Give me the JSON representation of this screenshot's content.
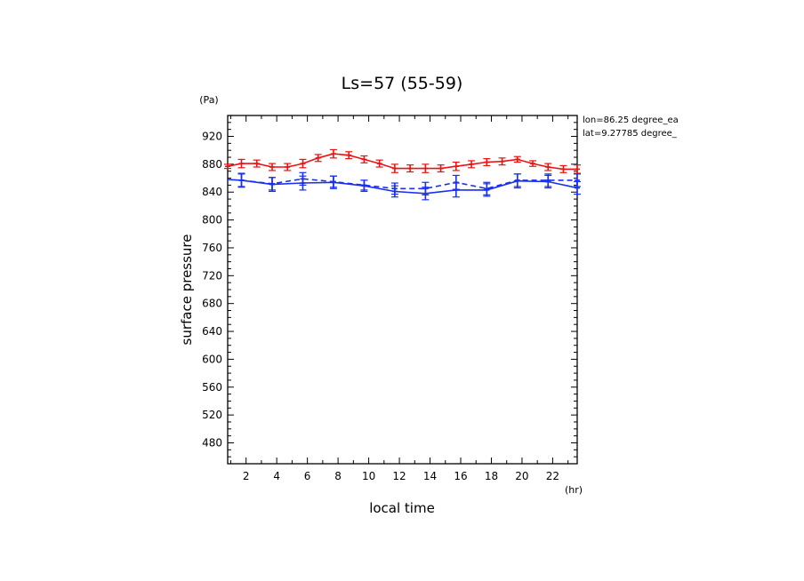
{
  "chart_data": {
    "type": "line",
    "title": "Ls=57 (55-59)",
    "xlabel": "local time",
    "ylabel": "surface pressure",
    "x_unit": "(hr)",
    "y_unit": "(Pa)",
    "xlim": [
      0.8,
      23.6
    ],
    "ylim": [
      450,
      950
    ],
    "x_ticks": [
      2,
      4,
      6,
      8,
      10,
      12,
      14,
      16,
      18,
      20,
      22
    ],
    "y_ticks": [
      480,
      520,
      560,
      600,
      640,
      680,
      720,
      760,
      800,
      840,
      880,
      920
    ],
    "annotations": [
      "lon=86.25 degree_ea",
      "lat=9.27785 degree_"
    ],
    "grid": false,
    "series": [
      {
        "color": "#ee1111",
        "style": "solid",
        "x": [
          0.8,
          1.7,
          2.7,
          3.7,
          4.7,
          5.7,
          6.7,
          7.7,
          8.7,
          9.7,
          10.7,
          11.7,
          12.7,
          13.7,
          14.7,
          15.7,
          16.7,
          17.7,
          18.7,
          19.7,
          20.7,
          21.7,
          22.7,
          23.6
        ],
        "values": [
          877,
          881,
          881,
          876,
          876,
          881,
          889,
          895,
          893,
          887,
          881,
          874,
          874,
          874,
          874,
          877,
          880,
          883,
          884,
          887,
          881,
          876,
          873,
          873
        ],
        "error": [
          3,
          6,
          5,
          5,
          5,
          6,
          5,
          6,
          5,
          5,
          5,
          6,
          5,
          6,
          5,
          6,
          5,
          5,
          5,
          4,
          4,
          5,
          5,
          6
        ]
      },
      {
        "color": "#1a2ff0",
        "style": "solid",
        "x": [
          0.8,
          1.7,
          3.7,
          5.7,
          7.7,
          9.7,
          11.7,
          13.7,
          15.7,
          17.7,
          19.7,
          21.7,
          23.6
        ],
        "values": [
          858,
          857,
          851,
          853,
          854,
          849,
          841,
          838,
          843,
          843,
          856,
          855,
          846
        ],
        "error": [
          0,
          10,
          10,
          10,
          9,
          8,
          8,
          9,
          10,
          9,
          10,
          9,
          9
        ]
      },
      {
        "color": "#1a2ff0",
        "style": "dashed",
        "x": [
          1.7,
          3.7,
          5.7,
          7.7,
          9.7,
          11.7,
          13.7,
          15.7,
          17.7,
          19.7,
          21.7,
          23.6
        ],
        "values": [
          857,
          852,
          859,
          855,
          850,
          845,
          845,
          854,
          845,
          857,
          857,
          857
        ],
        "error": [
          9,
          9,
          9,
          8,
          7,
          8,
          9,
          10,
          9,
          9,
          9,
          9
        ]
      }
    ]
  }
}
